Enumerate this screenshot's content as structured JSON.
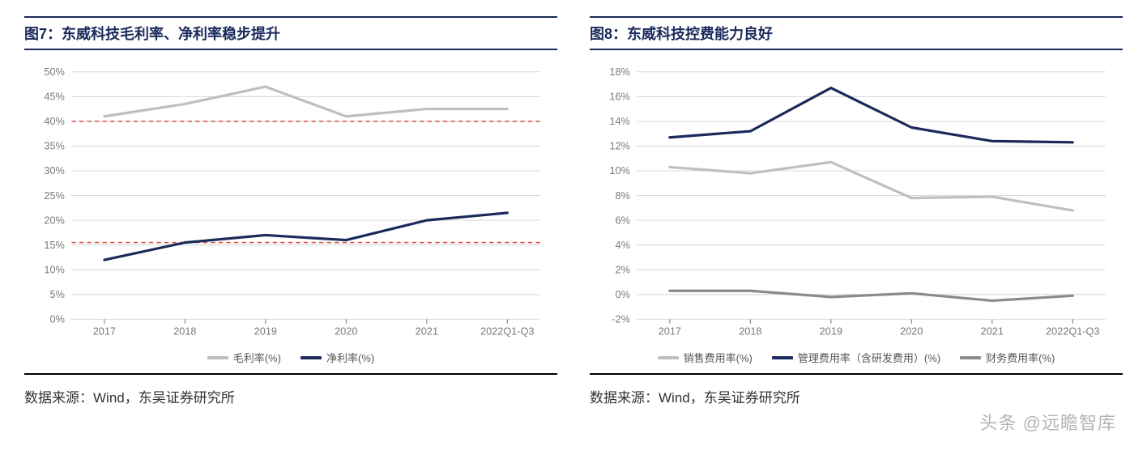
{
  "left": {
    "title": "图7：东威科技毛利率、净利率稳步提升",
    "source": "数据来源：Wind，东吴证券研究所",
    "chart": {
      "type": "line",
      "categories": [
        "2017",
        "2018",
        "2019",
        "2020",
        "2021",
        "2022Q1-Q3"
      ],
      "ylim": [
        0,
        50
      ],
      "ytick_step": 5,
      "y_suffix": "%",
      "series": [
        {
          "name": "毛利率(%)",
          "color": "#bfbfbf",
          "width": 3,
          "values": [
            41,
            43.5,
            47,
            41,
            42.5,
            42.5
          ]
        },
        {
          "name": "净利率(%)",
          "color": "#1a2a5c",
          "width": 3,
          "values": [
            12,
            15.5,
            17,
            16,
            20,
            21.5
          ]
        }
      ],
      "hlines": [
        {
          "y": 40,
          "color": "#d94a3f",
          "dash": "5,4"
        },
        {
          "y": 15.5,
          "color": "#d94a3f",
          "dash": "5,4"
        }
      ],
      "grid_color": "#d9d9d9",
      "tick_color": "#7a7a7a",
      "background": "#ffffff"
    }
  },
  "right": {
    "title": "图8：东威科技控费能力良好",
    "source": "数据来源：Wind，东吴证券研究所",
    "chart": {
      "type": "line",
      "categories": [
        "2017",
        "2018",
        "2019",
        "2020",
        "2021",
        "2022Q1-Q3"
      ],
      "ylim": [
        -2,
        18
      ],
      "ytick_step": 2,
      "y_suffix": "%",
      "series": [
        {
          "name": "销售费用率(%)",
          "color": "#bfbfbf",
          "width": 3,
          "values": [
            10.3,
            9.8,
            10.7,
            7.8,
            7.9,
            6.8
          ]
        },
        {
          "name": "管理费用率（含研发费用）(%)",
          "color": "#1a2a5c",
          "width": 3,
          "values": [
            12.7,
            13.2,
            16.7,
            13.5,
            12.4,
            12.3
          ]
        },
        {
          "name": "财务费用率(%)",
          "color": "#8a8a8a",
          "width": 3,
          "values": [
            0.3,
            0.3,
            -0.2,
            0.1,
            -0.5,
            -0.1
          ]
        }
      ],
      "hlines": [],
      "grid_color": "#d9d9d9",
      "tick_color": "#7a7a7a",
      "background": "#ffffff"
    }
  },
  "watermark": "头条 @远瞻智库"
}
